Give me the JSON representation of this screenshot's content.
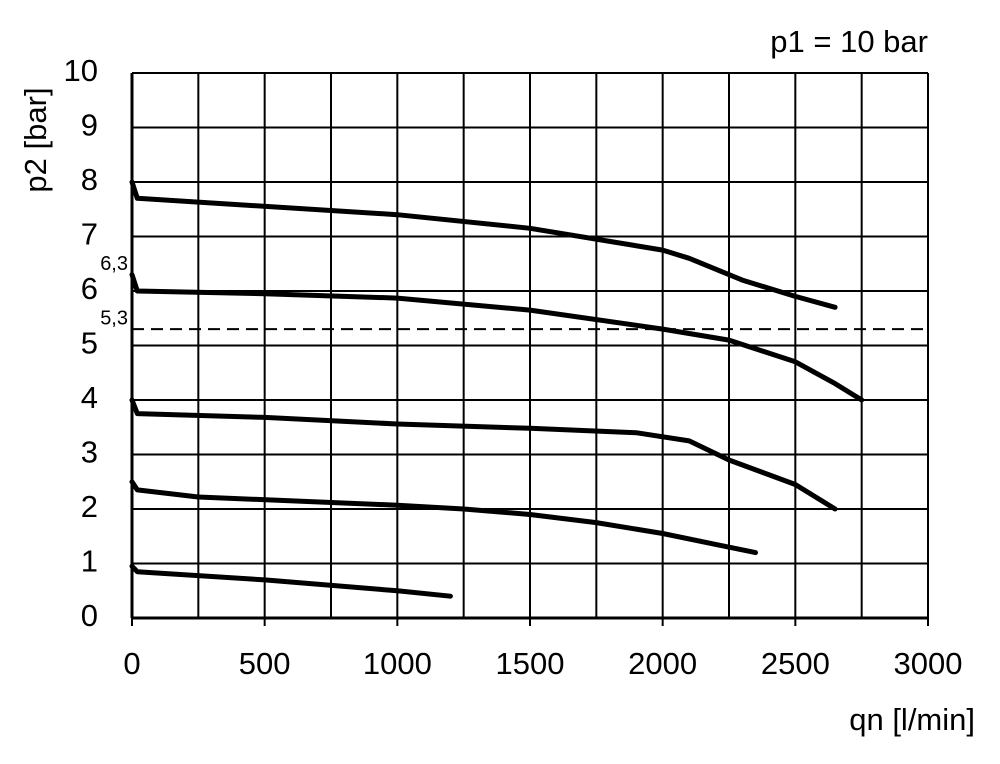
{
  "chart_data": {
    "type": "line",
    "x_label": "qn [l/min]",
    "y_label": "p2 [bar]",
    "annotations": [
      {
        "text": "p1 = 10 bar"
      },
      {
        "text": "6,3",
        "y": 6.3
      },
      {
        "text": "5,3",
        "y": 5.3
      }
    ],
    "reference_line": {
      "y": 5.3,
      "style": "dashed"
    },
    "xlim": [
      0,
      3000
    ],
    "xticks": [
      0,
      500,
      1000,
      1500,
      2000,
      2500,
      3000
    ],
    "xminorticks": [
      250,
      750,
      1250,
      1750,
      2250,
      2750
    ],
    "ylim": [
      0,
      10
    ],
    "yticks": [
      0,
      1,
      2,
      3,
      4,
      5,
      6,
      7,
      8,
      9,
      10
    ],
    "grid": true,
    "series": [
      {
        "color": "#000000",
        "x": [
          0,
          20,
          1000,
          1500,
          2000,
          2100,
          2300,
          2500,
          2650
        ],
        "values": [
          8.0,
          7.7,
          7.4,
          7.15,
          6.75,
          6.6,
          6.2,
          5.9,
          5.7
        ]
      },
      {
        "color": "#000000",
        "x": [
          0,
          20,
          500,
          1000,
          1500,
          2000,
          2250,
          2500,
          2650,
          2750
        ],
        "values": [
          6.3,
          6.0,
          5.95,
          5.87,
          5.65,
          5.3,
          5.1,
          4.7,
          4.3,
          4.0
        ]
      },
      {
        "color": "#000000",
        "x": [
          0,
          20,
          500,
          1000,
          1500,
          1900,
          2100,
          2250,
          2500,
          2650
        ],
        "values": [
          4.0,
          3.75,
          3.68,
          3.56,
          3.48,
          3.4,
          3.25,
          2.9,
          2.45,
          2.0
        ]
      },
      {
        "color": "#000000",
        "x": [
          0,
          20,
          250,
          1000,
          1250,
          1500,
          1750,
          2000,
          2200,
          2350
        ],
        "values": [
          2.5,
          2.35,
          2.22,
          2.07,
          2.0,
          1.9,
          1.75,
          1.55,
          1.35,
          1.2
        ]
      },
      {
        "color": "#000000",
        "x": [
          0,
          20,
          500,
          1000,
          1200
        ],
        "values": [
          0.95,
          0.85,
          0.7,
          0.5,
          0.4
        ]
      }
    ]
  }
}
